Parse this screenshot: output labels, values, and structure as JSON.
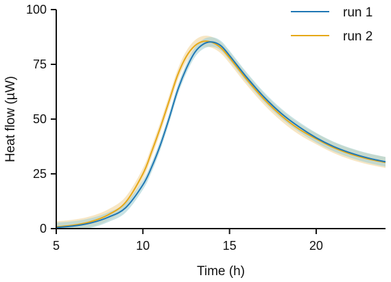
{
  "chart_data": {
    "type": "line",
    "title": "",
    "xlabel": "Time (h)",
    "ylabel": "Heat flow (µW)",
    "xlim": [
      5,
      24
    ],
    "ylim": [
      0,
      100
    ],
    "xticks": [
      5,
      10,
      15,
      20
    ],
    "yticks": [
      0,
      25,
      50,
      75,
      100
    ],
    "grid": false,
    "legend_position": "top-right",
    "series": [
      {
        "name": "run 1",
        "color": "#1f77b4",
        "band_color": "#a9d3d6",
        "band_halfwidth": 2.2,
        "x": [
          5,
          6,
          7,
          8,
          9,
          10,
          10.5,
          11,
          11.5,
          12,
          12.5,
          13,
          13.5,
          14,
          14.5,
          15,
          16,
          17,
          18,
          19,
          20,
          21,
          22,
          23,
          24
        ],
        "y": [
          0.5,
          1.2,
          2.6,
          5.2,
          9.5,
          20,
          28,
          38,
          50,
          63,
          73,
          80.5,
          84.3,
          85.2,
          83.5,
          79,
          69,
          60,
          52.5,
          46.5,
          41.5,
          37.5,
          34.5,
          32.2,
          30.5
        ]
      },
      {
        "name": "run 2",
        "color": "#e6a817",
        "band_color": "#f3d9a4",
        "band_halfwidth": 2.5,
        "x": [
          5,
          6,
          7,
          8,
          9,
          10,
          10.5,
          11,
          11.5,
          12,
          12.5,
          13,
          13.5,
          14,
          14.5,
          15,
          16,
          17,
          18,
          19,
          20,
          21,
          22,
          23,
          24
        ],
        "y": [
          0.8,
          1.6,
          3.2,
          6.3,
          12,
          25,
          35,
          46,
          58,
          70,
          78.5,
          83.5,
          85.5,
          85,
          82.5,
          78,
          68,
          59,
          51.5,
          45.5,
          41,
          37,
          34,
          31.8,
          30.2
        ]
      }
    ]
  }
}
